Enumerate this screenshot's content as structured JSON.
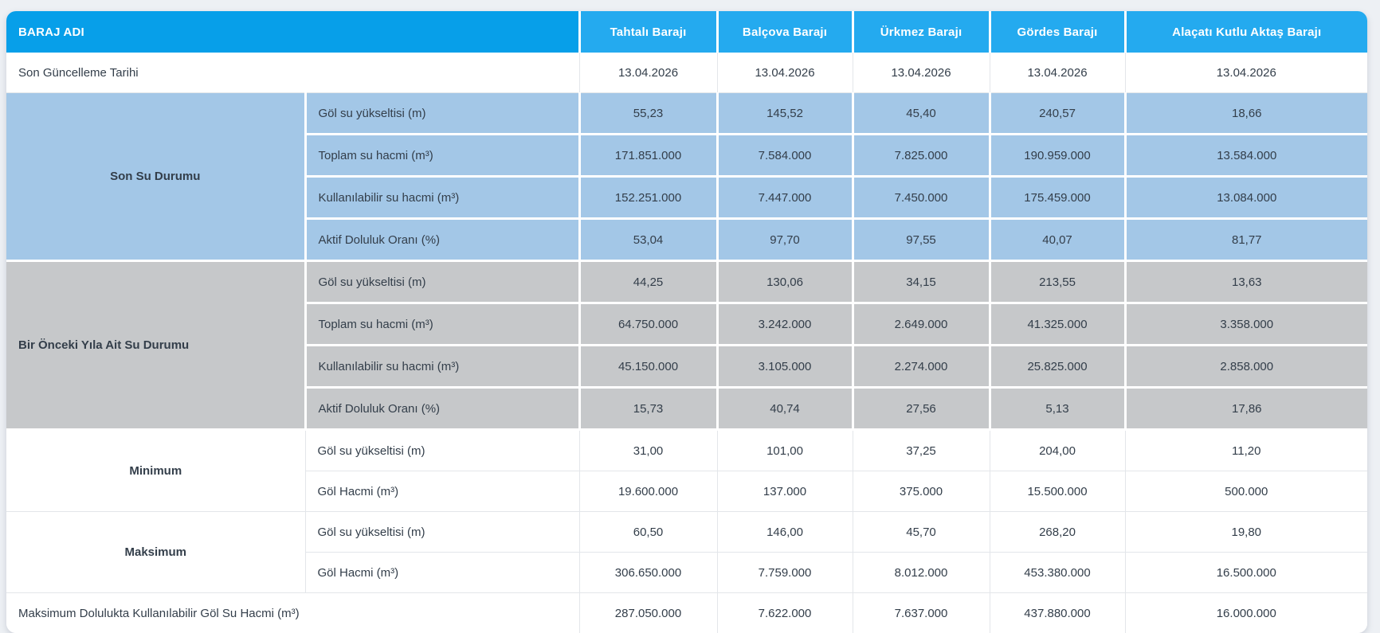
{
  "colors": {
    "page_bg": "#edf0f4",
    "header_first_cell_bg": "#079fe9",
    "header_dam_cell_bg": "#24aaef",
    "header_text": "#ffffff",
    "section_blue_bg": "#a3c7e7",
    "section_gray_bg": "#c6c8ca",
    "row_white_bg": "#ffffff",
    "body_text": "#333e4a",
    "divider_light": "#e3e6ea",
    "divider_white": "#ffffff"
  },
  "table": {
    "header": {
      "title": "BARAJ ADI",
      "dams": [
        "Tahtalı Barajı",
        "Balçova Barajı",
        "Ürkmez Barajı",
        "Gördes Barajı",
        "Alaçatı Kutlu Aktaş Barajı"
      ]
    },
    "update_row": {
      "label": "Son Güncelleme Tarihi",
      "values": [
        "13.04.2026",
        "13.04.2026",
        "13.04.2026",
        "13.04.2026",
        "13.04.2026"
      ]
    },
    "sections": [
      {
        "label": "Son Su Durumu",
        "style": "blue",
        "label_align": "center",
        "rows": [
          {
            "label": "Göl su yükseltisi (m)",
            "values": [
              "55,23",
              "145,52",
              "45,40",
              "240,57",
              "18,66"
            ]
          },
          {
            "label": "Toplam su hacmi (m³)",
            "values": [
              "171.851.000",
              "7.584.000",
              "7.825.000",
              "190.959.000",
              "13.584.000"
            ]
          },
          {
            "label": "Kullanılabilir su hacmi (m³)",
            "values": [
              "152.251.000",
              "7.447.000",
              "7.450.000",
              "175.459.000",
              "13.084.000"
            ]
          },
          {
            "label": "Aktif Doluluk Oranı (%)",
            "values": [
              "53,04",
              "97,70",
              "97,55",
              "40,07",
              "81,77"
            ]
          }
        ]
      },
      {
        "label": "Bir Önceki Yıla Ait Su Durumu",
        "style": "gray",
        "label_align": "left",
        "rows": [
          {
            "label": "Göl su yükseltisi (m)",
            "values": [
              "44,25",
              "130,06",
              "34,15",
              "213,55",
              "13,63"
            ]
          },
          {
            "label": "Toplam su hacmi (m³)",
            "values": [
              "64.750.000",
              "3.242.000",
              "2.649.000",
              "41.325.000",
              "3.358.000"
            ]
          },
          {
            "label": "Kullanılabilir su hacmi (m³)",
            "values": [
              "45.150.000",
              "3.105.000",
              "2.274.000",
              "25.825.000",
              "2.858.000"
            ]
          },
          {
            "label": "Aktif Doluluk Oranı (%)",
            "values": [
              "15,73",
              "40,74",
              "27,56",
              "5,13",
              "17,86"
            ]
          }
        ]
      },
      {
        "label": "Minimum",
        "style": "white",
        "label_align": "center",
        "rows": [
          {
            "label": "Göl su yükseltisi (m)",
            "values": [
              "31,00",
              "101,00",
              "37,25",
              "204,00",
              "11,20"
            ]
          },
          {
            "label": "Göl Hacmi (m³)",
            "values": [
              "19.600.000",
              "137.000",
              "375.000",
              "15.500.000",
              "500.000"
            ]
          }
        ]
      },
      {
        "label": "Maksimum",
        "style": "white",
        "label_align": "center",
        "rows": [
          {
            "label": "Göl su yükseltisi (m)",
            "values": [
              "60,50",
              "146,00",
              "45,70",
              "268,20",
              "19,80"
            ]
          },
          {
            "label": "Göl Hacmi (m³)",
            "values": [
              "306.650.000",
              "7.759.000",
              "8.012.000",
              "453.380.000",
              "16.500.000"
            ]
          }
        ]
      }
    ],
    "footer_row": {
      "label": "Maksimum Dolulukta Kullanılabilir Göl Su Hacmi (m³)",
      "values": [
        "287.050.000",
        "7.622.000",
        "7.637.000",
        "437.880.000",
        "16.000.000"
      ]
    }
  }
}
